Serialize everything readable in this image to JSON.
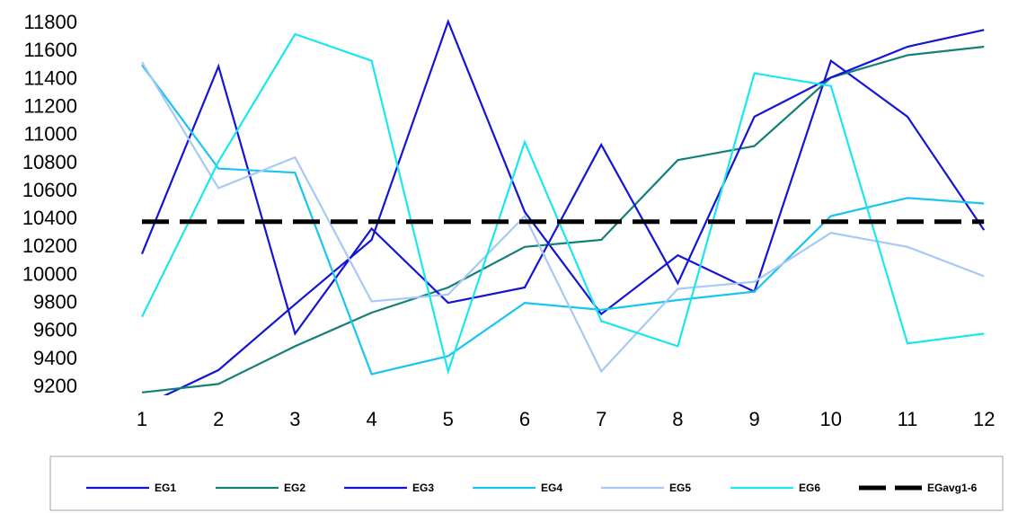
{
  "chart_data": {
    "type": "line",
    "title": "",
    "xlabel": "",
    "ylabel": "",
    "x": [
      1,
      2,
      3,
      4,
      5,
      6,
      7,
      8,
      9,
      10,
      11,
      12
    ],
    "ylim": [
      9200,
      11800
    ],
    "yticks": [
      9200,
      9400,
      9600,
      9800,
      10000,
      10200,
      10400,
      10600,
      10800,
      11000,
      11200,
      11400,
      11600,
      11800
    ],
    "grid": false,
    "legend_position": "bottom",
    "series": [
      {
        "name": "EG1",
        "color": "#1414d6",
        "dash": false,
        "values": [
          9050,
          9310,
          9780,
          10240,
          11800,
          10440,
          9710,
          10130,
          9870,
          11520,
          11120,
          10310
        ]
      },
      {
        "name": "EG2",
        "color": "#138077",
        "dash": false,
        "values": [
          9150,
          9210,
          9480,
          9720,
          9900,
          10190,
          10240,
          10810,
          10910,
          11400,
          11560,
          11620
        ]
      },
      {
        "name": "EG3",
        "color": "#1414d6",
        "dash": false,
        "values": [
          10140,
          11480,
          9570,
          10320,
          9790,
          9900,
          10920,
          9930,
          11120,
          11400,
          11620,
          11740
        ]
      },
      {
        "name": "EG4",
        "color": "#18c4f0",
        "dash": false,
        "values": [
          11490,
          10750,
          10720,
          9280,
          9410,
          9790,
          9740,
          9810,
          9870,
          10410,
          10540,
          10500
        ]
      },
      {
        "name": "EG5",
        "color": "#a6c9f5",
        "dash": false,
        "values": [
          11510,
          10610,
          10830,
          9800,
          9850,
          10410,
          9300,
          9890,
          9940,
          10290,
          10190,
          9980
        ]
      },
      {
        "name": "EG6",
        "color": "#1ae6f0",
        "dash": false,
        "values": [
          9690,
          10800,
          11710,
          11520,
          9300,
          10940,
          9660,
          9480,
          11430,
          11340,
          9500,
          9570
        ]
      },
      {
        "name": "EGavg1-6",
        "color": "#000000",
        "dash": true,
        "values": [
          10370,
          10370,
          10370,
          10370,
          10370,
          10370,
          10370,
          10370,
          10370,
          10370,
          10370,
          10370
        ]
      }
    ]
  }
}
